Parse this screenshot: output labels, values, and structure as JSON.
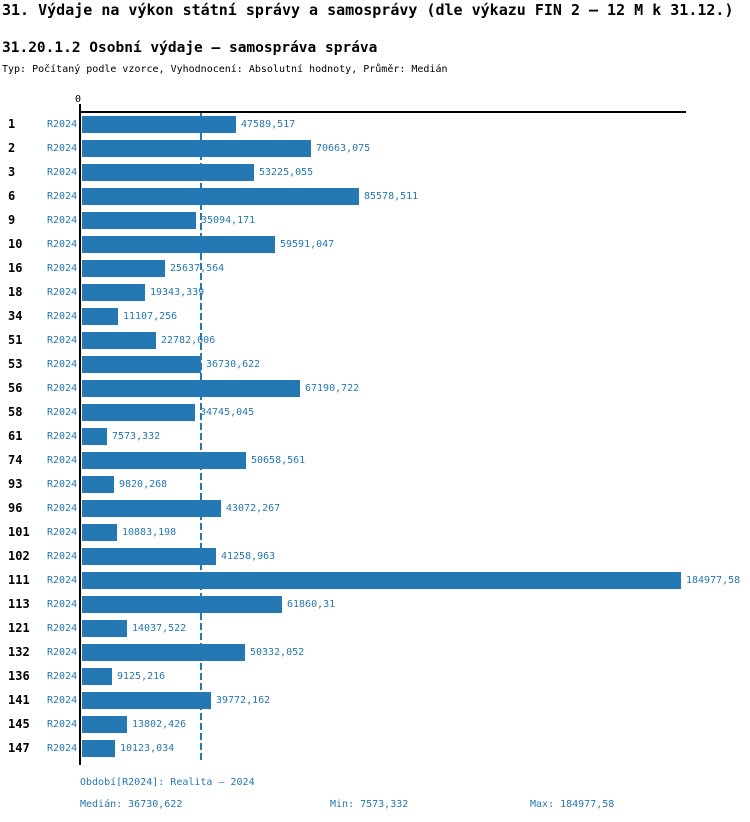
{
  "header": {
    "title": "31. Výdaje na výkon státní správy a samosprávy (dle výkazu FIN 2 – 12 M k 31.12.)",
    "subtitle": "31.20.1.2 Osobní výdaje – samospráva správa",
    "meta": "Typ: Počítaný podle vzorce, Vyhodnocení: Absolutní hodnoty, Průměr: Medián"
  },
  "colors": {
    "accent": "#2478b4",
    "axis": "#000000",
    "background": "#ffffff"
  },
  "chart_data": {
    "type": "bar",
    "orientation": "horizontal",
    "zero_label": "0",
    "series_name": "R2024",
    "categories": [
      "1",
      "2",
      "3",
      "6",
      "9",
      "10",
      "16",
      "18",
      "34",
      "51",
      "53",
      "56",
      "58",
      "61",
      "74",
      "93",
      "96",
      "101",
      "102",
      "111",
      "113",
      "121",
      "132",
      "136",
      "141",
      "145",
      "147"
    ],
    "values": [
      47589.517,
      70663.075,
      53225.055,
      85578.511,
      35094.171,
      59591.047,
      25637.564,
      19343.339,
      11107.256,
      22782.006,
      36730.622,
      67190.722,
      34745.045,
      7573.332,
      50658.561,
      9820.268,
      43072.267,
      10883.198,
      41258.963,
      184977.58,
      61860.31,
      14037.522,
      50332.052,
      9125.216,
      39772.162,
      13802.426,
      10123.034
    ],
    "value_labels": [
      "47589,517",
      "70663,075",
      "53225,055",
      "85578,511",
      "35094,171",
      "59591,047",
      "25637,564",
      "19343,339",
      "11107,256",
      "22782,006",
      "36730,622",
      "67190,722",
      "34745,045",
      "7573,332",
      "50658,561",
      "9820,268",
      "43072,267",
      "10883,198",
      "41258,963",
      "184977,58",
      "61860,31",
      "14037,522",
      "50332,052",
      "9125,216",
      "39772,162",
      "13802,426",
      "10123,034"
    ],
    "xlim": [
      0,
      186000
    ],
    "grid": false,
    "median": 36730.622,
    "min": 7573.332,
    "max": 184977.58
  },
  "footer": {
    "period": "Období[R2024]: Realita – 2024",
    "median": "Medián: 36730,622",
    "min": "Min: 7573,332",
    "max": "Max: 184977,58"
  }
}
